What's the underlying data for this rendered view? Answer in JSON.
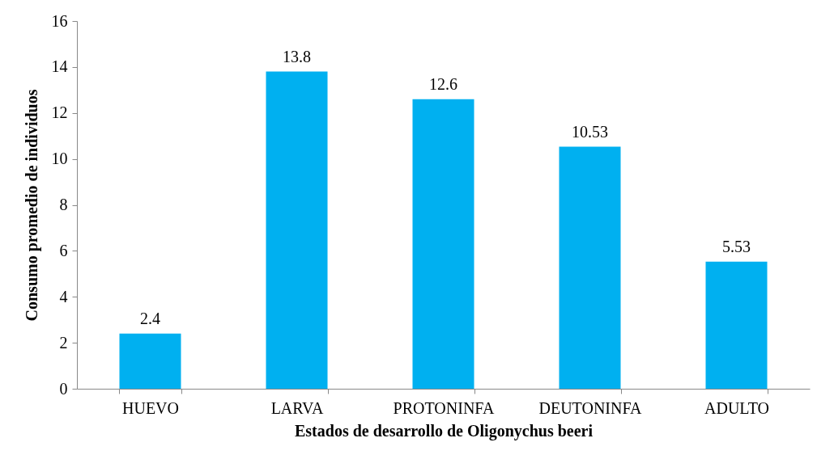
{
  "chart_data": {
    "type": "bar",
    "xlabel": "Estados de desarrollo de Oligonychus beeri",
    "ylabel": "Consumo promedio de individuos",
    "categories": [
      "HUEVO",
      "LARVA",
      "PROTONINFA",
      "DEUTONINFA",
      "ADULTO"
    ],
    "values": [
      2.4,
      13.8,
      12.6,
      10.53,
      5.53
    ],
    "color": "#00b0f0",
    "ylim": [
      0,
      16
    ],
    "yticks": [
      0,
      2,
      4,
      6,
      8,
      10,
      12,
      14,
      16
    ],
    "grid": false,
    "data_labels": true
  }
}
